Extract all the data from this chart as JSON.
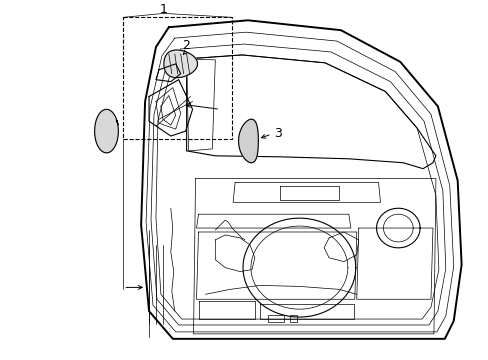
{
  "bg_color": "#ffffff",
  "line_color": "#000000",
  "lw_thick": 1.4,
  "lw_mid": 0.8,
  "lw_thin": 0.5,
  "fig_width": 4.89,
  "fig_height": 3.6,
  "dpi": 100,
  "label_1": "1",
  "label_2": "2",
  "label_3": "3"
}
